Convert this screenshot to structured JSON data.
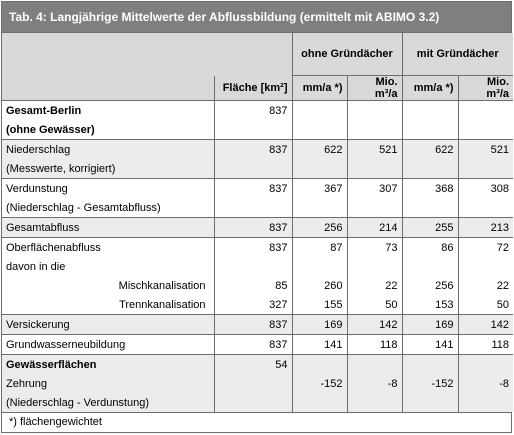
{
  "title": "Tab. 4: Langjährige Mittelwerte der Abflussbildung (ermittelt mit ABIMO 3.2)",
  "header": {
    "group1": "ohne Gründächer",
    "group2": "mit Gründächer",
    "col_flaeche": "Fläche [km²]",
    "col_mma1": "mm/a *)",
    "col_mio1": "Mio. m³/a",
    "col_mma2": "mm/a *)",
    "col_mio2": "Mio. m³/a"
  },
  "rows": [
    {
      "label": "Gesamt-Berlin",
      "flaeche": "837",
      "v1": "",
      "v2": "",
      "v3": "",
      "v4": ""
    },
    {
      "label": "(ohne Gewässer)",
      "flaeche": "",
      "v1": "",
      "v2": "",
      "v3": "",
      "v4": ""
    },
    {
      "label": "Niederschlag",
      "flaeche": "837",
      "v1": "622",
      "v2": "521",
      "v3": "622",
      "v4": "521"
    },
    {
      "label": "(Messwerte, korrigiert)",
      "flaeche": "",
      "v1": "",
      "v2": "",
      "v3": "",
      "v4": ""
    },
    {
      "label": "Verdunstung",
      "flaeche": "837",
      "v1": "367",
      "v2": "307",
      "v3": "368",
      "v4": "308"
    },
    {
      "label": "(Niederschlag - Gesamtabfluss)",
      "flaeche": "",
      "v1": "",
      "v2": "",
      "v3": "",
      "v4": ""
    },
    {
      "label": "Gesamtabfluss",
      "flaeche": "837",
      "v1": "256",
      "v2": "214",
      "v3": "255",
      "v4": "213"
    },
    {
      "label": "Oberflächenabfluss",
      "flaeche": "837",
      "v1": "87",
      "v2": "73",
      "v3": "86",
      "v4": "72"
    },
    {
      "label": "davon in die",
      "flaeche": "",
      "v1": "",
      "v2": "",
      "v3": "",
      "v4": ""
    },
    {
      "label": "Mischkanalisation",
      "flaeche": "85",
      "v1": "260",
      "v2": "22",
      "v3": "256",
      "v4": "22"
    },
    {
      "label": "Trennkanalisation",
      "flaeche": "327",
      "v1": "155",
      "v2": "50",
      "v3": "153",
      "v4": "50"
    },
    {
      "label": "Versickerung",
      "flaeche": "837",
      "v1": "169",
      "v2": "142",
      "v3": "169",
      "v4": "142"
    },
    {
      "label": "Grundwasserneubildung",
      "flaeche": "837",
      "v1": "141",
      "v2": "118",
      "v3": "141",
      "v4": "118"
    },
    {
      "label": "Gewässerflächen",
      "flaeche": "54",
      "v1": "",
      "v2": "",
      "v3": "",
      "v4": ""
    },
    {
      "label": "Zehrung",
      "flaeche": "",
      "v1": "-152",
      "v2": "-8",
      "v3": "-152",
      "v4": "-8"
    },
    {
      "label": "(Niederschlag - Verdunstung)",
      "flaeche": "",
      "v1": "",
      "v2": "",
      "v3": "",
      "v4": ""
    }
  ],
  "footnote": "*)  flächengewichtet"
}
